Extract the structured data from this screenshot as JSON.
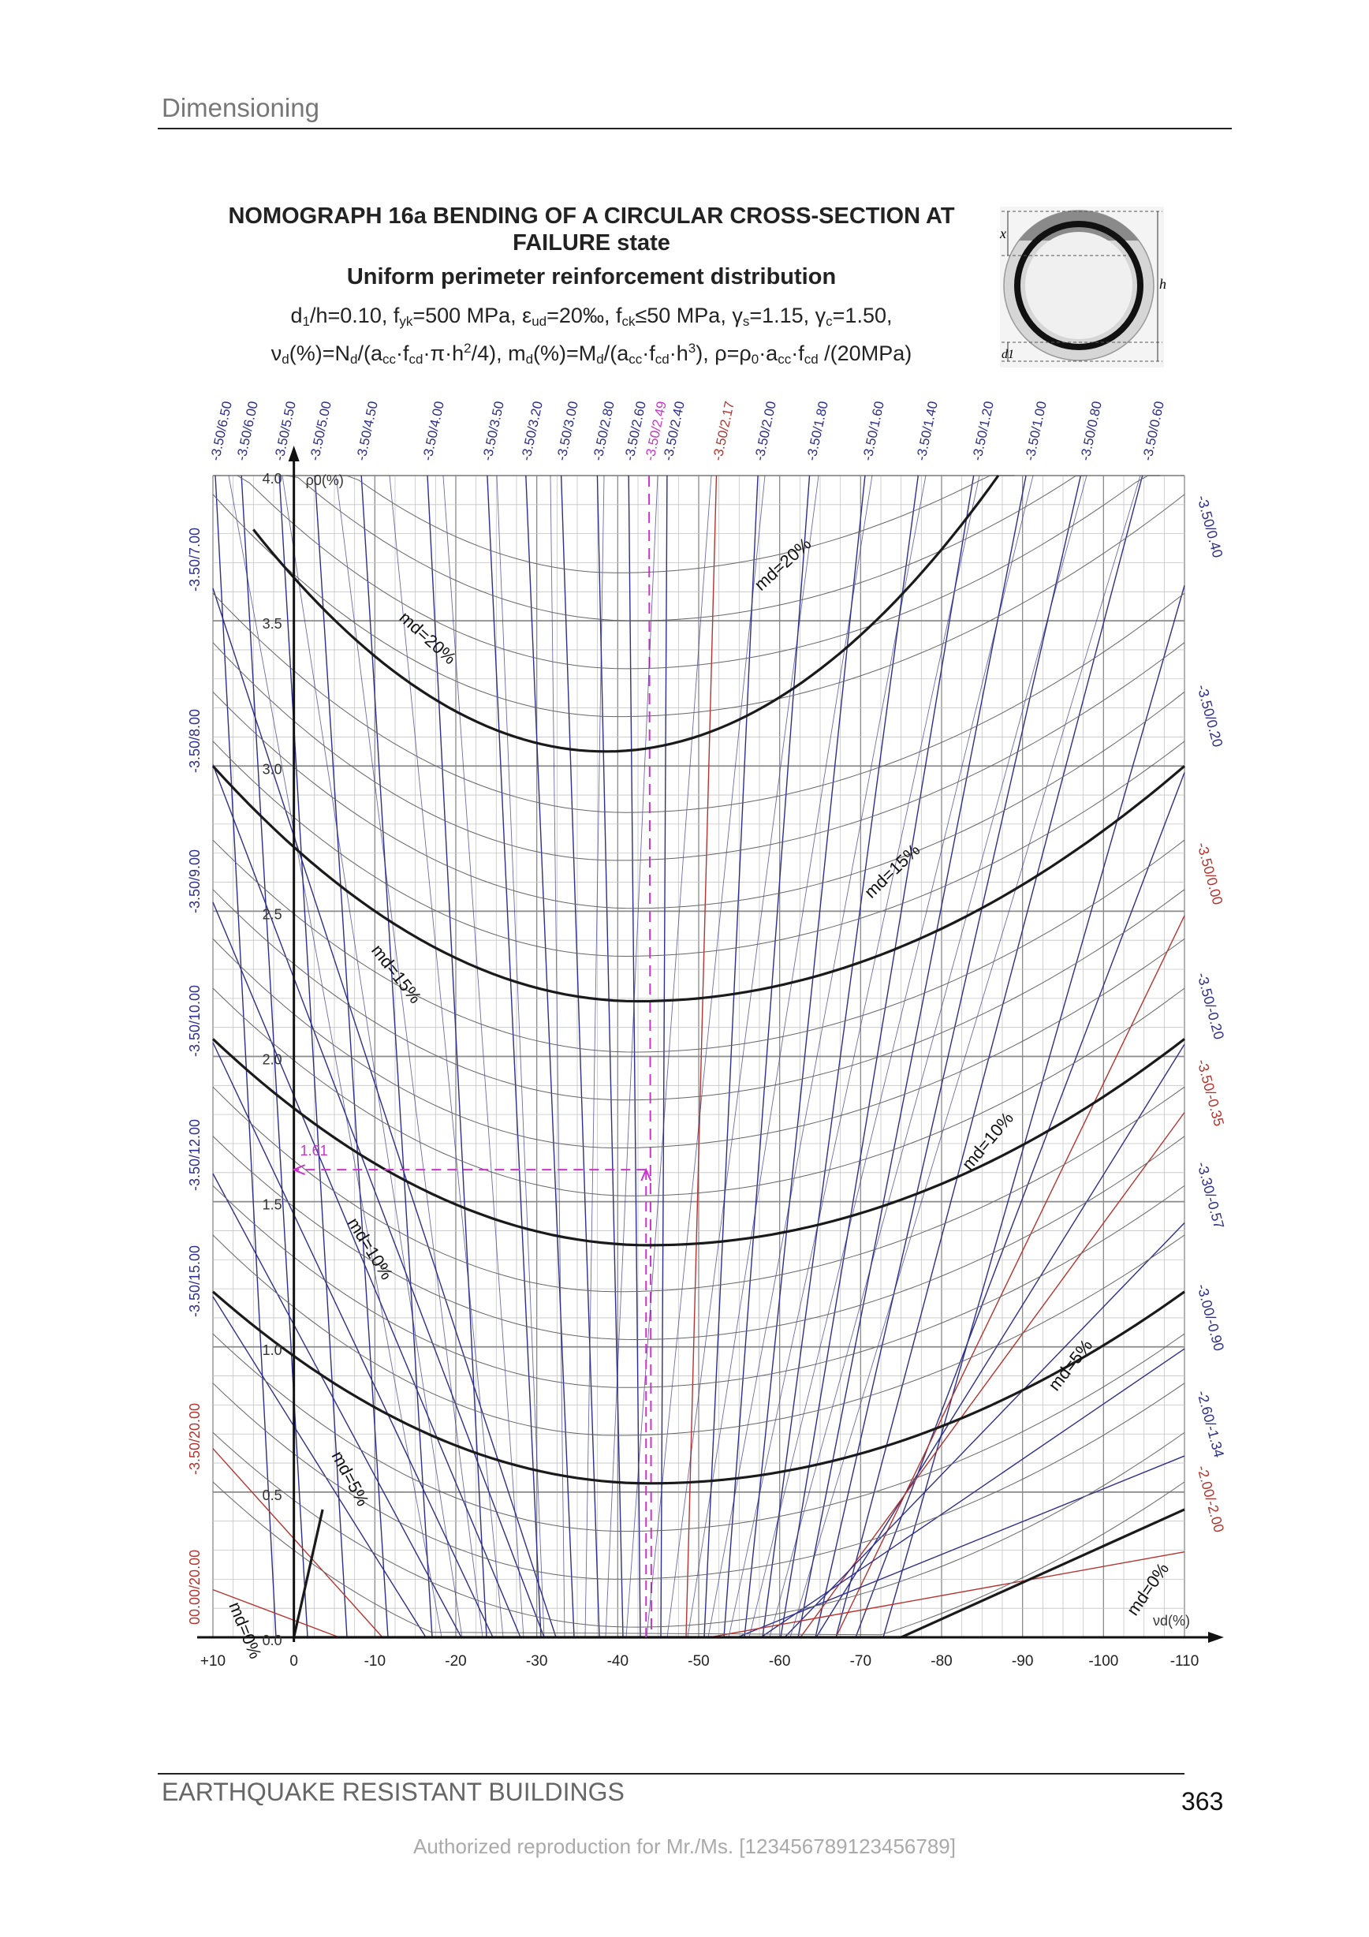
{
  "header": {
    "section": "Dimensioning"
  },
  "title": {
    "line1": "NOMOGRAPH 16a BENDING OF A CIRCULAR CROSS-SECTION AT FAILURE state",
    "line2": "Uniform perimeter reinforcement distribution",
    "params": [
      {
        "t": "d"
      },
      {
        "t": "1",
        "s": "sub"
      },
      {
        "t": "/h=0.10, f"
      },
      {
        "t": "yk",
        "s": "sub"
      },
      {
        "t": "=500 MPa, ε"
      },
      {
        "t": "ud",
        "s": "sub"
      },
      {
        "t": "=20‰, f"
      },
      {
        "t": "ck",
        "s": "sub"
      },
      {
        "t": "≤50 MPa, γ"
      },
      {
        "t": "s",
        "s": "sub"
      },
      {
        "t": "=1.15, γ"
      },
      {
        "t": "c",
        "s": "sub"
      },
      {
        "t": "=1.50,"
      }
    ],
    "formula": [
      {
        "t": "ν"
      },
      {
        "t": "d",
        "s": "sub"
      },
      {
        "t": "(%)=N"
      },
      {
        "t": "d",
        "s": "sub"
      },
      {
        "t": "/(a"
      },
      {
        "t": "cc",
        "s": "sub"
      },
      {
        "t": "·f"
      },
      {
        "t": "cd",
        "s": "sub"
      },
      {
        "t": "·π·h"
      },
      {
        "t": "2",
        "s": "sup"
      },
      {
        "t": "/4), m"
      },
      {
        "t": "d",
        "s": "sub"
      },
      {
        "t": "(%)=M"
      },
      {
        "t": "d",
        "s": "sub"
      },
      {
        "t": "/(a"
      },
      {
        "t": "cc",
        "s": "sub"
      },
      {
        "t": "·f"
      },
      {
        "t": "cd",
        "s": "sub"
      },
      {
        "t": "·h"
      },
      {
        "t": "3",
        "s": "sup"
      },
      {
        "t": "), ρ=ρ"
      },
      {
        "t": "0",
        "s": "sub"
      },
      {
        "t": "·a"
      },
      {
        "t": "cc",
        "s": "sub"
      },
      {
        "t": "·f"
      },
      {
        "t": "cd",
        "s": "sub"
      },
      {
        "t": " /(20MPa)"
      }
    ]
  },
  "inset": {
    "x_label": "x",
    "h_label": "h",
    "d1_label": "d1"
  },
  "chart_data": {
    "type": "line",
    "title": "NOMOGRAPH 16a BENDING OF A CIRCULAR CROSS-SECTION AT FAILURE state",
    "xlabel": "νd(%)",
    "ylabel": "ρ0(%)",
    "xlim": [
      10,
      -110
    ],
    "ylim": [
      0,
      4.0
    ],
    "x_ticks": [
      "+10",
      "0",
      "-10",
      "-20",
      "-30",
      "-40",
      "-50",
      "-60",
      "-70",
      "-80",
      "-90",
      "-100",
      "-110"
    ],
    "y_ticks": [
      "0.0",
      "0.5",
      "1.0",
      "1.5",
      "2.0",
      "2.5",
      "3.0",
      "3.5",
      "4.0"
    ],
    "grid": true,
    "md_labels": [
      "md=0%",
      "md=5%",
      "md=10%",
      "md=15%",
      "md=20%"
    ],
    "series": [
      {
        "name": "md=0%",
        "x": [
          -3.55,
          0,
          -75.0,
          -110
        ],
        "y": [
          0.44,
          0,
          0,
          0.44
        ],
        "md": 0
      },
      {
        "name": "md=5%",
        "x": [
          10,
          -44.0,
          -110
        ],
        "y": [
          1.19,
          0.53,
          1.19
        ],
        "md": 5
      },
      {
        "name": "md=10%",
        "x": [
          10,
          -44.0,
          -110
        ],
        "y": [
          2.06,
          1.35,
          2.06
        ],
        "md": 10
      },
      {
        "name": "md=15%",
        "x": [
          10,
          -42.5,
          -110
        ],
        "y": [
          3.0,
          2.19,
          3.0
        ],
        "md": 15
      },
      {
        "name": "md=20%",
        "x": [
          5.0,
          -38.5,
          -87.0
        ],
        "y": [
          4.0,
          3.05,
          4.0
        ],
        "md": 20
      }
    ],
    "strain_lines": {
      "top": [
        "-3.50/6.50",
        "-3.50/6.00",
        "-3.50/5.50",
        "-3.50/5.00",
        "-3.50/4.50",
        "-3.50/4.00",
        "-3.50/3.50",
        "-3.50/3.20",
        "-3.50/3.00",
        "-3.50/2.80",
        "-3.50/2.60",
        "-3.50/2.49",
        "-3.50/2.40",
        "-3.50/2.17",
        "-3.50/2.00",
        "-3.50/1.80",
        "-3.50/1.60",
        "-3.50/1.40",
        "-3.50/1.20",
        "-3.50/1.00",
        "-3.50/0.80",
        "-3.50/0.60"
      ],
      "left": [
        "-3.50/7.00",
        "-3.50/8.00",
        "-3.50/9.00",
        "-3.50/10.00",
        "-3.50/12.00",
        "-3.50/15.00",
        "-3.50/20.00",
        "00.00/20.00"
      ],
      "right": [
        "-3.50/0.40",
        "-3.50/0.20",
        "-3.50/0.00",
        "-3.50/-0.20",
        "-3.50/-0.35",
        "-3.30/-0.57",
        "-3.00/-0.90",
        "-2.60/-1.34",
        "-2.00/-2.00"
      ],
      "highlight": "-3.50/2.49",
      "red": [
        "-3.50/2.17",
        "-3.50/0.00",
        "-3.50/-0.35",
        "-3.50/20.00",
        "00.00/20.00",
        "-2.00/-2.00"
      ]
    },
    "example": {
      "rho_value": "1.61",
      "nu_d": -43.5,
      "rho": 1.61
    }
  },
  "footer": {
    "book": "EARTHQUAKE RESISTANT BUILDINGS",
    "page": "363"
  },
  "watermark": "Authorized reproduction for Mr./Ms. [123456789123456789]",
  "colors": {
    "blue": "#2d2f8a",
    "red": "#b5342f",
    "magenta": "#cc33cc",
    "grid": "#9a9a9a",
    "curve": "#1a1a1a"
  }
}
